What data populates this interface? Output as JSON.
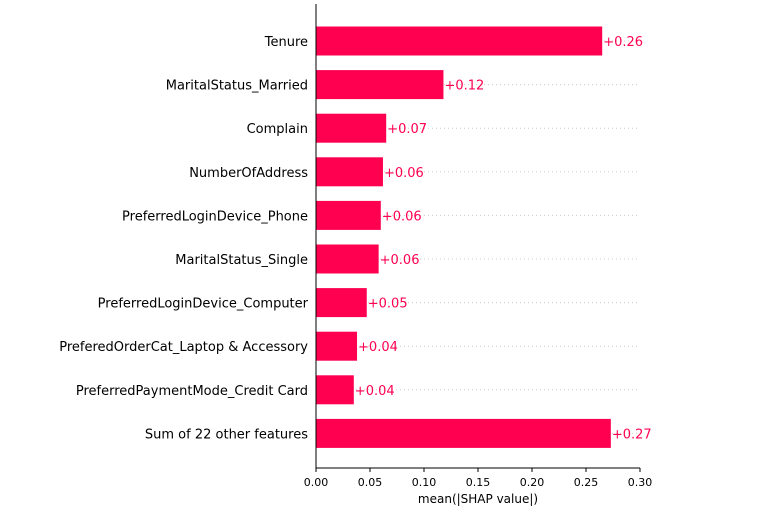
{
  "chart_data": {
    "type": "bar",
    "orientation": "horizontal",
    "categories": [
      "Tenure",
      "MaritalStatus_Married",
      "Complain",
      "NumberOfAddress",
      "PreferredLoginDevice_Phone",
      "MaritalStatus_Single",
      "PreferredLoginDevice_Computer",
      "PreferedOrderCat_Laptop & Accessory",
      "PreferredPaymentMode_Credit Card",
      "Sum of 22 other features"
    ],
    "values": [
      0.265,
      0.118,
      0.065,
      0.062,
      0.06,
      0.058,
      0.047,
      0.038,
      0.035,
      0.273
    ],
    "value_labels": [
      "+0.26",
      "+0.12",
      "+0.07",
      "+0.06",
      "+0.06",
      "+0.06",
      "+0.05",
      "+0.04",
      "+0.04",
      "+0.27"
    ],
    "title": "",
    "xlabel": "mean(|SHAP value|)",
    "ylabel": "",
    "xlim": [
      0,
      0.3
    ],
    "xticks": [
      "0.00",
      "0.05",
      "0.10",
      "0.15",
      "0.20",
      "0.25",
      "0.30"
    ],
    "grid": "dotted horizontal row guides",
    "bar_color": "#ff0051",
    "label_color": "#ff0051"
  }
}
